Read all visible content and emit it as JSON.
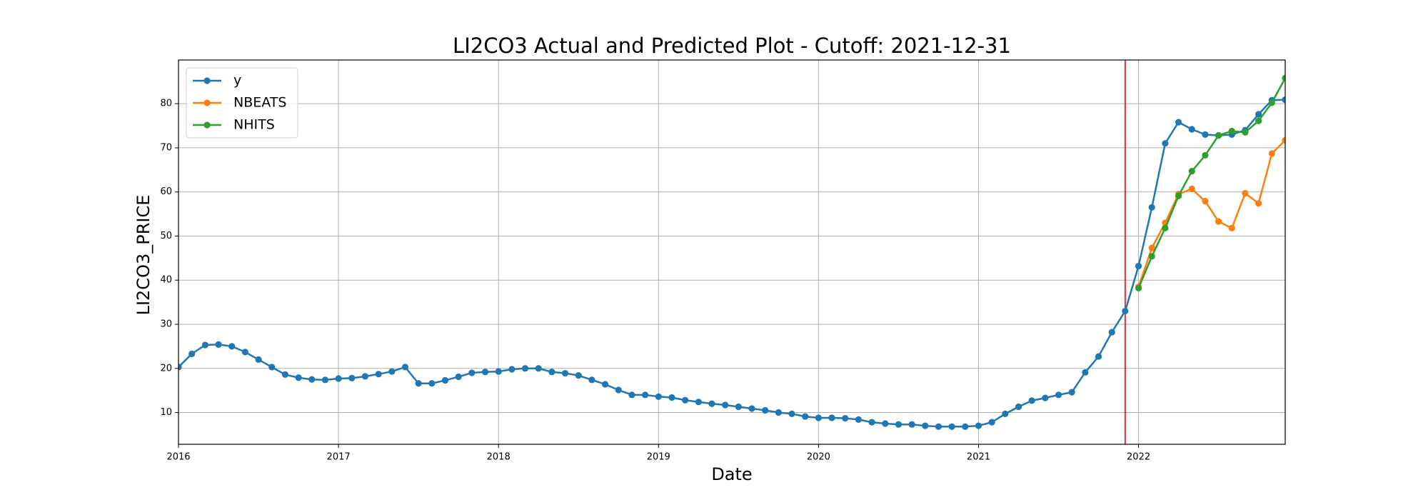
{
  "chart_data": {
    "type": "line",
    "title": "LI2CO3 Actual and Predicted Plot - Cutoff: 2021-12-31",
    "x_label": "Date",
    "y_label": "LI2CO3_PRICE",
    "x": [
      "2016-01",
      "2016-02",
      "2016-03",
      "2016-04",
      "2016-05",
      "2016-06",
      "2016-07",
      "2016-08",
      "2016-09",
      "2016-10",
      "2016-11",
      "2016-12",
      "2017-01",
      "2017-02",
      "2017-03",
      "2017-04",
      "2017-05",
      "2017-06",
      "2017-07",
      "2017-08",
      "2017-09",
      "2017-10",
      "2017-11",
      "2017-12",
      "2018-01",
      "2018-02",
      "2018-03",
      "2018-04",
      "2018-05",
      "2018-06",
      "2018-07",
      "2018-08",
      "2018-09",
      "2018-10",
      "2018-11",
      "2018-12",
      "2019-01",
      "2019-02",
      "2019-03",
      "2019-04",
      "2019-05",
      "2019-06",
      "2019-07",
      "2019-08",
      "2019-09",
      "2019-10",
      "2019-11",
      "2019-12",
      "2020-01",
      "2020-02",
      "2020-03",
      "2020-04",
      "2020-05",
      "2020-06",
      "2020-07",
      "2020-08",
      "2020-09",
      "2020-10",
      "2020-11",
      "2020-12",
      "2021-01",
      "2021-02",
      "2021-03",
      "2021-04",
      "2021-05",
      "2021-06",
      "2021-07",
      "2021-08",
      "2021-09",
      "2021-10",
      "2021-11",
      "2021-12",
      "2022-01",
      "2022-02",
      "2022-03",
      "2022-04",
      "2022-05",
      "2022-06",
      "2022-07",
      "2022-08",
      "2022-09",
      "2022-10",
      "2022-11",
      "2022-12"
    ],
    "series": [
      {
        "name": "y",
        "color": "#1f77b4",
        "values": [
          20.3,
          23.3,
          25.3,
          25.4,
          25.0,
          23.7,
          22.0,
          20.3,
          18.6,
          17.9,
          17.5,
          17.4,
          17.7,
          17.8,
          18.2,
          18.7,
          19.3,
          20.3,
          16.6,
          16.6,
          17.3,
          18.1,
          19.0,
          19.2,
          19.3,
          19.8,
          20.0,
          20.0,
          19.2,
          18.9,
          18.4,
          17.4,
          16.4,
          15.1,
          14.0,
          14.0,
          13.6,
          13.4,
          12.8,
          12.4,
          12.0,
          11.7,
          11.3,
          10.9,
          10.5,
          10.0,
          9.7,
          9.1,
          8.8,
          8.8,
          8.7,
          8.4,
          7.8,
          7.5,
          7.3,
          7.3,
          7.0,
          6.8,
          6.8,
          6.8,
          7.0,
          7.8,
          9.7,
          11.3,
          12.7,
          13.3,
          14.0,
          14.6,
          19.1,
          22.7,
          28.2,
          33.0,
          43.2,
          56.5,
          71.0,
          75.8,
          74.2,
          73.0,
          72.8,
          73.0,
          74.0,
          77.6,
          80.8,
          80.9
        ]
      },
      {
        "name": "NBEATS",
        "color": "#ff7f0e",
        "values": [
          null,
          null,
          null,
          null,
          null,
          null,
          null,
          null,
          null,
          null,
          null,
          null,
          null,
          null,
          null,
          null,
          null,
          null,
          null,
          null,
          null,
          null,
          null,
          null,
          null,
          null,
          null,
          null,
          null,
          null,
          null,
          null,
          null,
          null,
          null,
          null,
          null,
          null,
          null,
          null,
          null,
          null,
          null,
          null,
          null,
          null,
          null,
          null,
          null,
          null,
          null,
          null,
          null,
          null,
          null,
          null,
          null,
          null,
          null,
          null,
          null,
          null,
          null,
          null,
          null,
          null,
          null,
          null,
          null,
          null,
          null,
          null,
          38.5,
          47.3,
          53.0,
          59.5,
          60.7,
          57.9,
          53.3,
          51.8,
          59.7,
          57.4,
          68.7,
          71.7
        ]
      },
      {
        "name": "NHITS",
        "color": "#2ca02c",
        "values": [
          null,
          null,
          null,
          null,
          null,
          null,
          null,
          null,
          null,
          null,
          null,
          null,
          null,
          null,
          null,
          null,
          null,
          null,
          null,
          null,
          null,
          null,
          null,
          null,
          null,
          null,
          null,
          null,
          null,
          null,
          null,
          null,
          null,
          null,
          null,
          null,
          null,
          null,
          null,
          null,
          null,
          null,
          null,
          null,
          null,
          null,
          null,
          null,
          null,
          null,
          null,
          null,
          null,
          null,
          null,
          null,
          null,
          null,
          null,
          null,
          null,
          null,
          null,
          null,
          null,
          null,
          null,
          null,
          null,
          null,
          null,
          null,
          38.2,
          45.4,
          51.8,
          59.1,
          64.7,
          68.3,
          72.8,
          73.8,
          73.5,
          76.1,
          80.2,
          85.8
        ]
      }
    ],
    "xlim": [
      "2016-01",
      "2022-12"
    ],
    "xticks": [
      "2016",
      "2017",
      "2018",
      "2019",
      "2020",
      "2021",
      "2022"
    ],
    "ylim": [
      2.8,
      89.9
    ],
    "yticks": [
      10,
      20,
      30,
      40,
      50,
      60,
      70,
      80
    ],
    "grid": true,
    "legend": "upper left",
    "vline": {
      "x": "2021-12",
      "color": "#ff0000"
    }
  }
}
